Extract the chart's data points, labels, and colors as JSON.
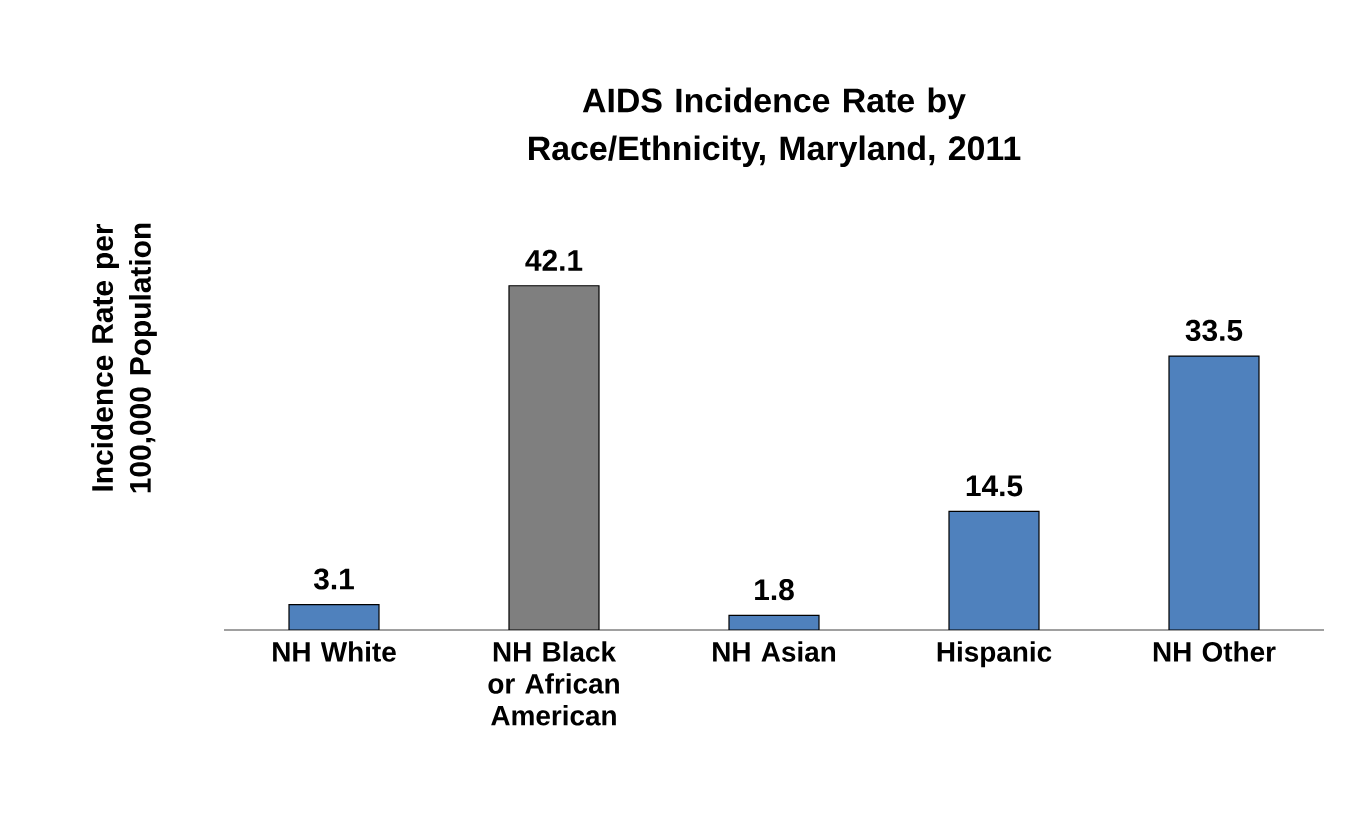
{
  "chart_data": {
    "type": "bar",
    "title": "AIDS Incidence Rate by Race/Ethnicity, Maryland, 2011",
    "ylabel": "Incidence Rate per 100,000 Population",
    "categories": [
      "NH White",
      "NH Black or African American",
      "NH Asian",
      "Hispanic",
      "NH Other"
    ],
    "values": [
      3.1,
      42.1,
      1.8,
      14.5,
      33.5
    ],
    "colors": [
      "#4f81bd",
      "#7f7f7f",
      "#4f81bd",
      "#4f81bd",
      "#4f81bd"
    ],
    "data_labels": true
  }
}
